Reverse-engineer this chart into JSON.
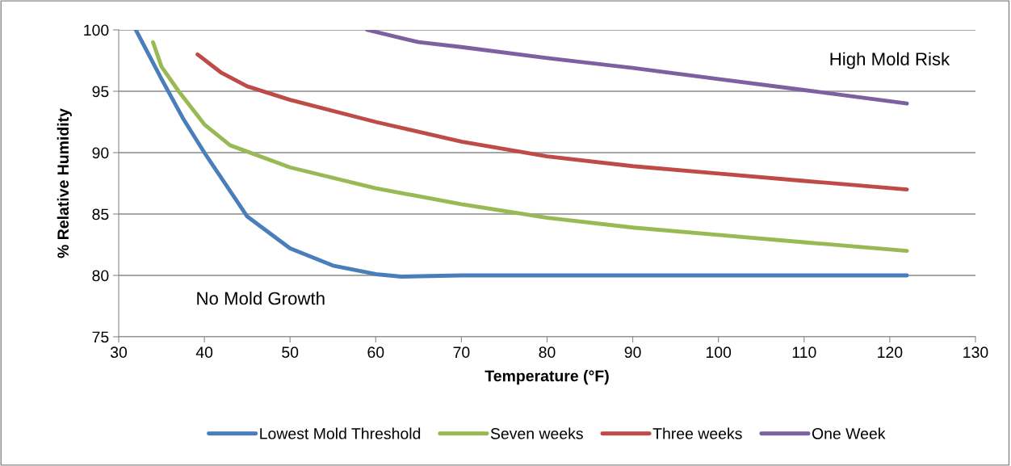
{
  "chart_data": {
    "type": "line",
    "xlabel": "Temperature (°F)",
    "ylabel": "% Relative Humidity",
    "xlim": [
      30,
      130
    ],
    "xticks": [
      30,
      40,
      50,
      60,
      70,
      80,
      90,
      100,
      110,
      120,
      130
    ],
    "ylim": [
      75,
      100
    ],
    "yticks": [
      75,
      80,
      85,
      90,
      95,
      100
    ],
    "grid": "y",
    "legend": "bottom",
    "marker": "none",
    "line_style": "solid",
    "annotations": [
      "High Mold Risk",
      "No Mold Growth"
    ],
    "series": [
      {
        "name": "Lowest Mold Threshold",
        "color": "#4a7ebb",
        "x": [
          32,
          35,
          37.5,
          40,
          45,
          50,
          55,
          60,
          63,
          70,
          80,
          100,
          122
        ],
        "values": [
          100,
          96,
          92.8,
          90,
          84.8,
          82.2,
          80.8,
          80.1,
          79.9,
          80,
          80,
          80,
          80
        ]
      },
      {
        "name": "Seven weeks",
        "color": "#98b954",
        "x": [
          34,
          35,
          37,
          40,
          43,
          50,
          60,
          70,
          80,
          90,
          100,
          110,
          122
        ],
        "values": [
          99,
          97,
          95,
          92.3,
          90.6,
          88.8,
          87.1,
          85.8,
          84.7,
          83.9,
          83.3,
          82.7,
          82
        ]
      },
      {
        "name": "Three weeks",
        "color": "#be4b48",
        "x": [
          39.2,
          42,
          45,
          50,
          60,
          70,
          80,
          90,
          100,
          110,
          122
        ],
        "values": [
          98,
          96.5,
          95.4,
          94.3,
          92.5,
          90.9,
          89.7,
          88.9,
          88.3,
          87.7,
          87
        ]
      },
      {
        "name": "One Week",
        "color": "#7d60a0",
        "x": [
          59,
          62,
          65,
          70,
          80,
          90,
          100,
          110,
          122
        ],
        "values": [
          100,
          99.5,
          99,
          98.6,
          97.7,
          96.9,
          96,
          95.1,
          94
        ]
      }
    ]
  }
}
